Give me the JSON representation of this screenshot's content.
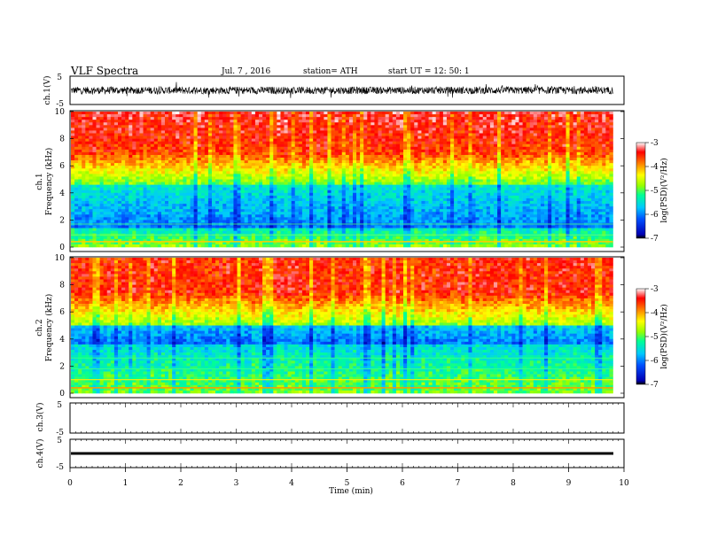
{
  "header": {
    "title": "VLF  Spectra",
    "date": "Jul.  7  , 2016",
    "station": "station= ATH",
    "start": "start  UT  =    12: 50: 1"
  },
  "chart_data": [
    {
      "type": "line",
      "id": "ch1-waveform",
      "ylabel": "ch.1(V)",
      "ylim": [
        -5,
        5
      ],
      "y_ticks": [
        "5",
        "-5"
      ],
      "xlim": [
        0,
        10
      ],
      "description_signal": "noise waveform, amplitude approx ±1.5 V"
    },
    {
      "type": "heatmap",
      "id": "ch1-spectrogram",
      "ylabel": "ch.1\nFrequency  (kHz)",
      "ylabel_line1": "ch.1",
      "ylabel_line2": "Frequency  (kHz)",
      "ylim": [
        0,
        10
      ],
      "y_ticks": [
        "0",
        "2",
        "4",
        "6",
        "8",
        "10"
      ],
      "xlim": [
        0,
        9.8
      ],
      "colorbar": {
        "label": "log(PSD)(V²/Hz)",
        "range": [
          -7,
          -3
        ],
        "ticks": [
          "-3",
          "-4",
          "-5",
          "-6",
          "-7"
        ]
      }
    },
    {
      "type": "heatmap",
      "id": "ch2-spectrogram",
      "ylabel_line1": "ch.2",
      "ylabel_line2": "Frequency  (kHz)",
      "ylim": [
        0,
        10
      ],
      "y_ticks": [
        "0",
        "2",
        "4",
        "6",
        "8",
        "10"
      ],
      "xlim": [
        0,
        9.8
      ],
      "colorbar": {
        "label": "log(PSD)(V²/Hz)",
        "range": [
          -7,
          -3
        ],
        "ticks": [
          "-3",
          "-4",
          "-5",
          "-6",
          "-7"
        ]
      }
    },
    {
      "type": "line",
      "id": "ch3-waveform",
      "ylabel": "ch.3(V)",
      "ylim": [
        -5,
        5
      ],
      "y_ticks": [
        "5",
        "-5"
      ],
      "values_note": "flat, no signal"
    },
    {
      "type": "line",
      "id": "ch4-waveform",
      "ylabel": "ch.4(V)",
      "ylim": [
        -5,
        5
      ],
      "y_ticks": [
        "5",
        "-5"
      ],
      "values_note": "constant at approx 0 V"
    }
  ],
  "x_axis": {
    "label": "Time  (min)",
    "ticks": [
      "0",
      "1",
      "2",
      "3",
      "4",
      "5",
      "6",
      "7",
      "8",
      "9",
      "10"
    ],
    "range": [
      0,
      10
    ]
  },
  "colors": {
    "spectrum_scale": [
      "#000000",
      "#0000b4",
      "#0050ff",
      "#00c8ff",
      "#00ff96",
      "#96ff00",
      "#ffff00",
      "#ff9600",
      "#ff0000",
      "#ffffff"
    ]
  }
}
